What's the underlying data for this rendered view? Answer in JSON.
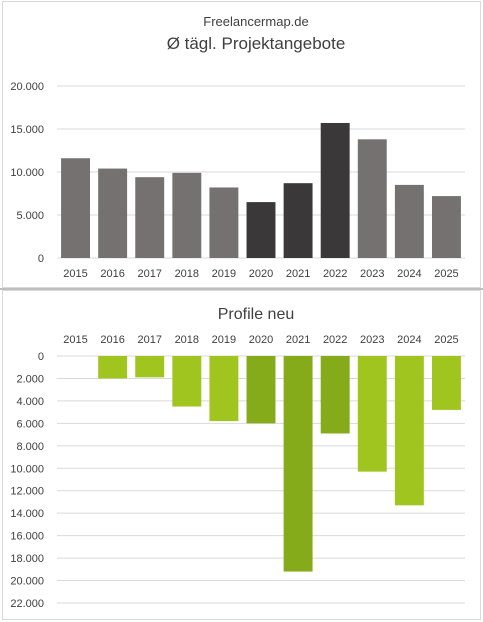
{
  "chart_data": [
    {
      "type": "bar",
      "subtitle": "Freelancermap.de",
      "title": "Ø tägl. Projektangebote",
      "categories": [
        "2015",
        "2016",
        "2017",
        "2018",
        "2019",
        "2020",
        "2021",
        "2022",
        "2023",
        "2024",
        "2025"
      ],
      "values": [
        11600,
        10400,
        9400,
        9900,
        8200,
        6500,
        8700,
        15700,
        13800,
        8500,
        7200
      ],
      "highlight": [
        false,
        false,
        false,
        false,
        false,
        true,
        true,
        true,
        false,
        false,
        false
      ],
      "ylim": [
        0,
        20000
      ],
      "yticks": [
        "0",
        "5.000",
        "10.000",
        "15.000",
        "20.000"
      ],
      "grid": true,
      "colors": {
        "normal": "#767171",
        "highlight": "#3a3838"
      }
    },
    {
      "type": "bar",
      "title": "Profile neu",
      "categories": [
        "2015",
        "2016",
        "2017",
        "2018",
        "2019",
        "2020",
        "2021",
        "2022",
        "2023",
        "2024",
        "2025"
      ],
      "values": [
        0,
        -2000,
        -1900,
        -4500,
        -5800,
        -6000,
        -19200,
        -6900,
        -10300,
        -13300,
        -4800
      ],
      "highlight": [
        false,
        false,
        false,
        false,
        false,
        true,
        true,
        true,
        false,
        false,
        false
      ],
      "ylim": [
        -22000,
        0
      ],
      "yticks": [
        "0",
        "2.000",
        "4.000",
        "6.000",
        "8.000",
        "10.000",
        "12.000",
        "14.000",
        "16.000",
        "18.000",
        "20.000",
        "22.000"
      ],
      "grid": true,
      "colors": {
        "normal": "#a0c51e",
        "highlight": "#86ab1a"
      }
    }
  ]
}
